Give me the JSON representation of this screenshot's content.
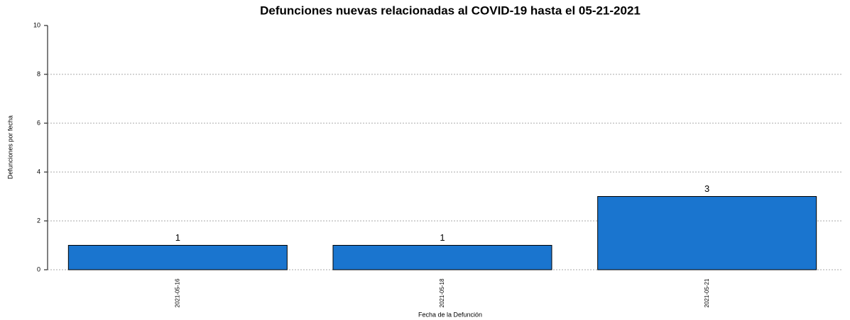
{
  "chart_data": {
    "type": "bar",
    "title": "Defunciones nuevas relacionadas al COVID-19 hasta el 05-21-2021",
    "x_label": "Fecha de la Defunción",
    "y_label": "Defunciones por fecha",
    "categories": [
      "2021-05-16",
      "2021-05-18",
      "2021-05-21"
    ],
    "values": [
      1,
      1,
      3
    ],
    "color": "#1a75cf",
    "ylim": [
      0,
      10
    ],
    "yticks": [
      0,
      2,
      4,
      6,
      8,
      10
    ],
    "grid": true
  }
}
